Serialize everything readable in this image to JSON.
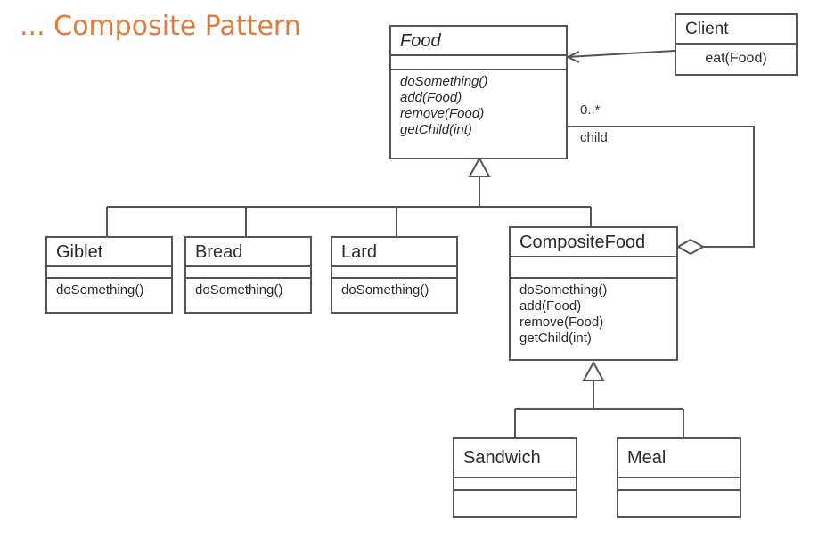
{
  "title": "... Composite Pattern",
  "classes": {
    "food": {
      "name": "Food",
      "ops": [
        "doSomething()",
        "add(Food)",
        "remove(Food)",
        "getChild(int)"
      ]
    },
    "client": {
      "name": "Client",
      "ops": [
        "eat(Food)"
      ]
    },
    "giblet": {
      "name": "Giblet",
      "ops": [
        "doSomething()"
      ]
    },
    "bread": {
      "name": "Bread",
      "ops": [
        "doSomething()"
      ]
    },
    "lard": {
      "name": "Lard",
      "ops": [
        "doSomething()"
      ]
    },
    "composite": {
      "name": "CompositeFood",
      "ops": [
        "doSomething()",
        "add(Food)",
        "remove(Food)",
        "getChild(int)"
      ]
    },
    "sandwich": {
      "name": "Sandwich",
      "ops": []
    },
    "meal": {
      "name": "Meal",
      "ops": []
    }
  },
  "association": {
    "multiplicity": "0..*",
    "role": "child"
  },
  "colors": {
    "title": "#e07b3c",
    "line": "#555555",
    "text": "#2b2b2b"
  }
}
